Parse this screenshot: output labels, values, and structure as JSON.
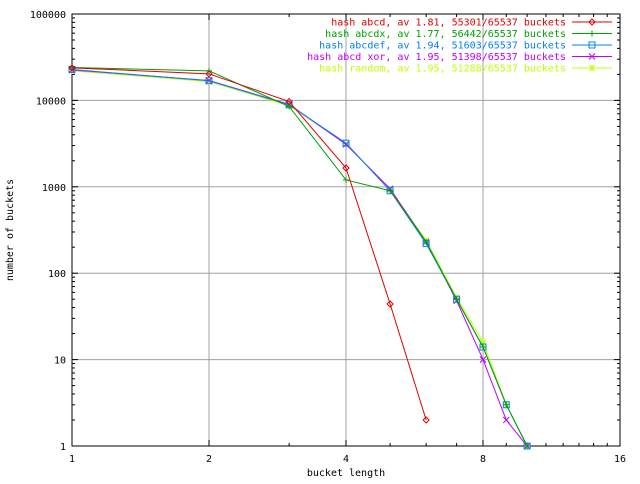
{
  "chart_data": {
    "type": "line",
    "title": "",
    "xlabel": "bucket length",
    "ylabel": "number of buckets",
    "x_scale": "log2",
    "y_scale": "log10",
    "xlim": [
      1,
      16
    ],
    "ylim": [
      1,
      100000
    ],
    "grid": true,
    "legend_position": "top-right",
    "x_ticks": [
      {
        "value": 1,
        "label": "1"
      },
      {
        "value": 2,
        "label": "2"
      },
      {
        "value": 4,
        "label": "4"
      },
      {
        "value": 8,
        "label": "8"
      },
      {
        "value": 16,
        "label": "16"
      }
    ],
    "y_ticks": [
      {
        "value": 1,
        "label": "1"
      },
      {
        "value": 10,
        "label": "10"
      },
      {
        "value": 100,
        "label": "100"
      },
      {
        "value": 1000,
        "label": "1000"
      },
      {
        "value": 10000,
        "label": "10000"
      },
      {
        "value": 100000,
        "label": "100000"
      }
    ],
    "series": [
      {
        "name": "hash abcd, av 1.81, 55301/65537 buckets",
        "color": "#e00000",
        "marker": "diamond",
        "x": [
          1,
          2,
          3,
          4,
          5,
          6
        ],
        "y": [
          23800,
          20300,
          9700,
          1650,
          44,
          2
        ]
      },
      {
        "name": "hash abcdx, av 1.77, 56442/65537 buckets",
        "color": "#00a000",
        "marker": "plus",
        "x": [
          1,
          2,
          3,
          4,
          5,
          6,
          7,
          8,
          9,
          10
        ],
        "y": [
          24000,
          22000,
          8500,
          1200,
          900,
          230,
          50,
          14,
          3,
          1
        ]
      },
      {
        "name": "hash abcdef, av 1.94, 51603/65537 buckets",
        "color": "#0080ff",
        "marker": "square",
        "x": [
          1,
          2,
          3,
          4,
          5,
          6,
          7,
          8,
          9,
          10
        ],
        "y": [
          22800,
          16900,
          8900,
          3200,
          900,
          220,
          50,
          14,
          3,
          1
        ]
      },
      {
        "name": "hash abcd xor, av 1.95, 51398/65537 buckets",
        "color": "#c000ff",
        "marker": "x",
        "x": [
          1,
          2,
          3,
          4,
          5,
          6,
          7,
          8,
          9,
          10
        ],
        "y": [
          22500,
          17000,
          9000,
          3100,
          950,
          230,
          48,
          10,
          2,
          1
        ]
      },
      {
        "name": "hash random, av 1.95, 51288/65537 buckets",
        "color": "#c0ff00",
        "marker": "star",
        "x": [
          1,
          2,
          3,
          4,
          5,
          6,
          7,
          8,
          9,
          10
        ],
        "y": [
          22000,
          16500,
          8700,
          3150,
          930,
          240,
          52,
          16,
          3,
          1
        ]
      }
    ]
  }
}
